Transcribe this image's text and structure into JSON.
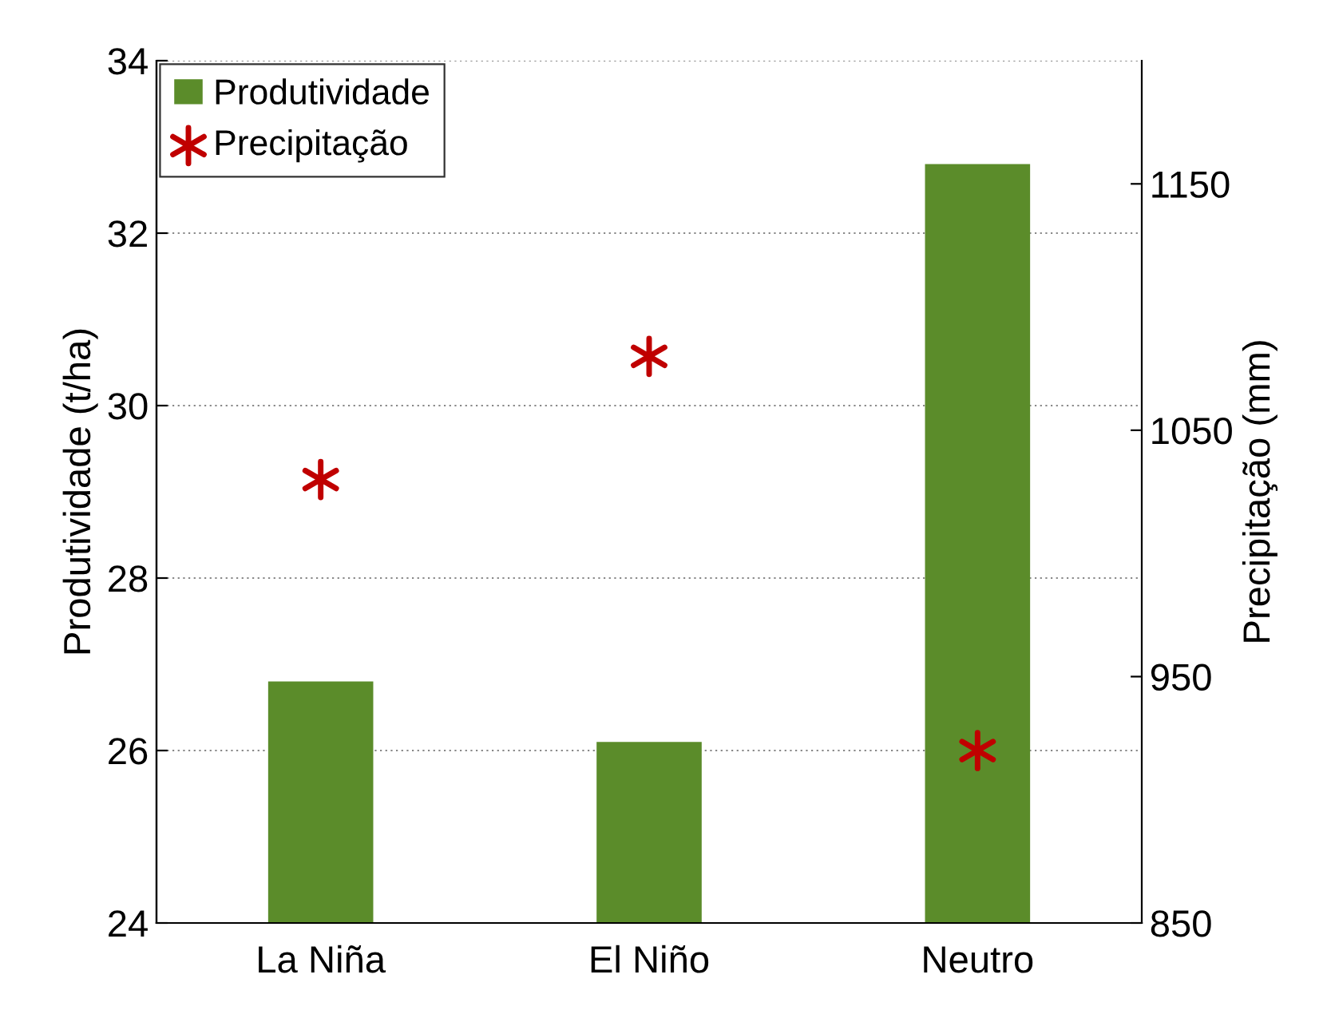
{
  "chart_data": {
    "type": "bar",
    "categories": [
      "La Niña",
      "El Niño",
      "Neutro"
    ],
    "ylabel": "Produtividade (t/ha)",
    "y2label": "Precipitação (mm)",
    "series": [
      {
        "name": "Produtividade",
        "color": "#5b8c2a",
        "values": [
          26.8,
          26.1,
          32.8
        ]
      },
      {
        "name": "Precipitação",
        "type": "scatter",
        "axis": "y2",
        "color": "#c00000",
        "marker": "cross",
        "values": [
          1030,
          1080,
          920
        ]
      }
    ],
    "ylim": [
      24,
      34
    ],
    "yticks": [
      24,
      26,
      28,
      30,
      32,
      34
    ],
    "y2lim": [
      850,
      1200
    ],
    "y2ticks": [
      850,
      950,
      1050,
      1150
    ],
    "grid": "y",
    "legend": "top left"
  }
}
